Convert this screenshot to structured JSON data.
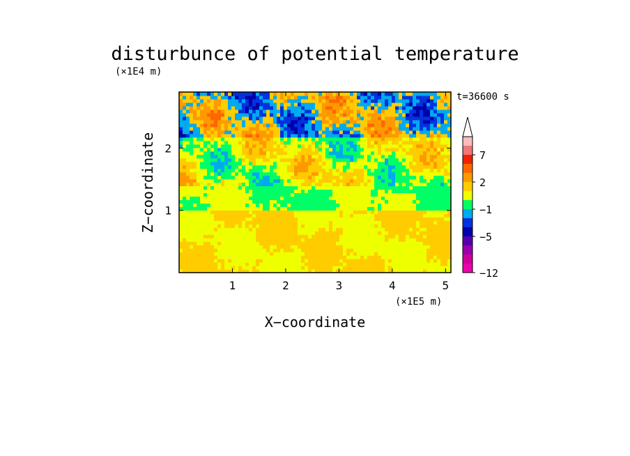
{
  "chart_data": {
    "type": "heatmap",
    "title": "disturbunce of potential temperature",
    "xlabel": "X−coordinate",
    "ylabel": "Z−coordinate",
    "x_multiplier": "(×1E5 m)",
    "y_multiplier": "(×1E4 m)",
    "time_label": "t=36600 s",
    "xlim": [
      0,
      5.1
    ],
    "ylim": [
      0,
      2.9
    ],
    "x_ticks": [
      1,
      2,
      3,
      4,
      5
    ],
    "x_tick_labels": [
      "1",
      "2",
      "3",
      "4",
      "5"
    ],
    "y_ticks": [
      1,
      2
    ],
    "y_tick_labels": [
      "1",
      "2"
    ],
    "colorbar": {
      "levels": [
        -12,
        -11,
        -9,
        -7,
        -5,
        -4,
        -3,
        -1,
        0,
        1,
        2,
        3,
        5,
        7,
        9,
        11
      ],
      "colors": [
        "#ee00aa",
        "#cc0099",
        "#9900aa",
        "#5500aa",
        "#0000aa",
        "#0033dd",
        "#00aaee",
        "#00ff66",
        "#eeff00",
        "#ffcc00",
        "#ff9900",
        "#ff6600",
        "#ee2200",
        "#ee7777",
        "#ffbbbb"
      ],
      "extend": "max",
      "tick_values": [
        -12,
        -5,
        -1,
        2,
        7
      ],
      "tick_labels": [
        "−12",
        "−5",
        "−1",
        "2",
        "7"
      ]
    },
    "field_pattern": [
      {
        "z_range": [
          0.0,
          1.0
        ],
        "level": "weak-positive",
        "colors": [
          "#eeff00",
          "#ffcc00"
        ]
      },
      {
        "z_range": [
          1.0,
          1.4
        ],
        "level": "near-zero",
        "colors": [
          "#00ff66",
          "#eeff00"
        ]
      },
      {
        "z_range": [
          1.4,
          2.2
        ],
        "level": "wave",
        "colors": [
          "#00aaee",
          "#00ff66",
          "#eeff00",
          "#ffcc00",
          "#ff9900"
        ]
      },
      {
        "z_range": [
          2.2,
          2.9
        ],
        "level": "strong-wave",
        "colors": [
          "#0000aa",
          "#0033dd",
          "#00aaee",
          "#ffcc00",
          "#ff9900",
          "#ff6600"
        ]
      }
    ]
  }
}
